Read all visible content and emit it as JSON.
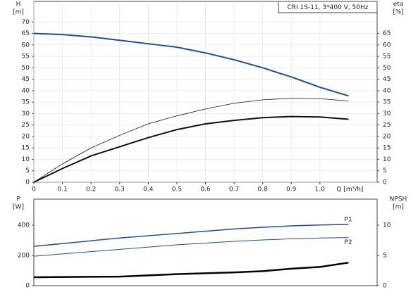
{
  "chart_data": [
    {
      "type": "line",
      "title": "CRI 1S-11, 3*400 V, 50Hz",
      "ylabel": "H",
      "yunit": "[m]",
      "y2label": "eta",
      "y2unit": "[%]",
      "xlabel": "Q [m³/h]",
      "x": [
        0,
        0.1,
        0.2,
        0.3,
        0.4,
        0.5,
        0.6,
        0.7,
        0.8,
        0.9,
        1.0,
        1.1
      ],
      "xlim": [
        0,
        1.2
      ],
      "xticks": [
        0,
        0.1,
        0.2,
        0.3,
        0.4,
        0.5,
        0.6,
        0.7,
        0.8,
        0.9,
        {
          "value": 1,
          "label": "1.0"
        }
      ],
      "ylim": [
        0,
        79
      ],
      "yticks": [
        0,
        5,
        10,
        15,
        20,
        25,
        30,
        35,
        40,
        45,
        50,
        55,
        60,
        65,
        70
      ],
      "y2lim": [
        0,
        79
      ],
      "y2ticks": [
        0,
        5,
        10,
        15,
        20,
        25,
        30,
        35,
        40,
        45,
        50,
        55,
        60,
        65
      ],
      "grid": true,
      "series": [
        {
          "color": "#1f4e8c",
          "line_width": 2,
          "values": [
            65,
            64.5,
            63.5,
            62,
            60.5,
            59,
            56.5,
            53.5,
            50,
            46,
            41.5,
            37.7
          ]
        },
        {
          "color": "#111111",
          "line_width": 0.8,
          "axis": "y2",
          "values": [
            0,
            8,
            15,
            20.5,
            25.5,
            29,
            32,
            34.5,
            36,
            36.7,
            36.5,
            35.5
          ]
        },
        {
          "color": "#111111",
          "line_width": 2,
          "axis": "y2",
          "values": [
            0,
            6,
            11.5,
            15.5,
            19.5,
            23,
            25.5,
            27,
            28.2,
            28.7,
            28.5,
            27.5
          ]
        }
      ]
    },
    {
      "type": "line",
      "ylabel": "P",
      "yunit": "[W]",
      "y2label": "NPSH",
      "y2unit": "[m]",
      "x": [
        0,
        0.3,
        0.5,
        0.7,
        0.8,
        0.9,
        1.0,
        1.1
      ],
      "xlim": [
        0,
        1.2
      ],
      "ylim": [
        0,
        572
      ],
      "yticks": [
        0,
        200,
        400
      ],
      "y2lim": [
        0,
        14.3
      ],
      "y2ticks": [
        0,
        5,
        10
      ],
      "series": [
        {
          "name": "P1",
          "color": "#1f4e8c",
          "line_width": 1.5,
          "values": [
            260,
            315,
            345,
            375,
            386,
            395,
            401,
            405
          ]
        },
        {
          "name": "P2",
          "color": "#1f4e8c",
          "line_width": 1,
          "values": [
            195,
            240,
            270,
            293,
            302,
            310,
            315,
            318
          ]
        },
        {
          "color": "#000000",
          "line_width": 2.5,
          "axis": "y2",
          "values": [
            1.4,
            1.5,
            1.9,
            2.2,
            2.4,
            2.8,
            3.1,
            3.8
          ]
        }
      ]
    }
  ]
}
